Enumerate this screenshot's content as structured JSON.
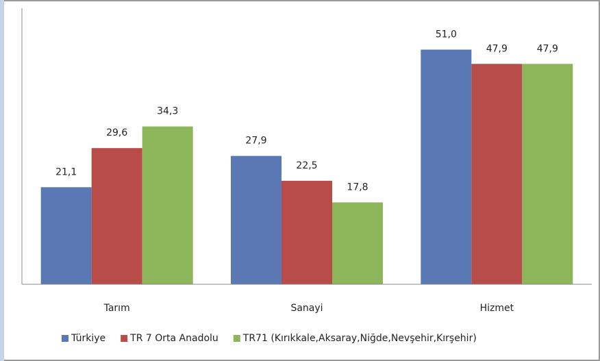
{
  "chart_data": {
    "type": "bar",
    "categories": [
      "Tarım",
      "Sanayi",
      "Hizmet"
    ],
    "series": [
      {
        "name": "Türkiye",
        "color": "#5a79b4",
        "values": [
          21.1,
          27.9,
          51.0
        ],
        "value_labels": [
          "21,1",
          "27,9",
          "51,0"
        ]
      },
      {
        "name": "TR 7 Orta Anadolu",
        "color": "#b84c49",
        "values": [
          29.6,
          22.5,
          47.9
        ],
        "value_labels": [
          "29,6",
          "22,5",
          "47,9"
        ]
      },
      {
        "name": "TR71 (Kırıkkale,Aksaray,Niğde,Nevşehir,Kırşehir)",
        "color": "#8db55a",
        "values": [
          34.3,
          17.8,
          47.9
        ],
        "value_labels": [
          "34,3",
          "17,8",
          "47,9"
        ]
      }
    ],
    "ylim": [
      0,
      60
    ],
    "legend": "bottom"
  }
}
